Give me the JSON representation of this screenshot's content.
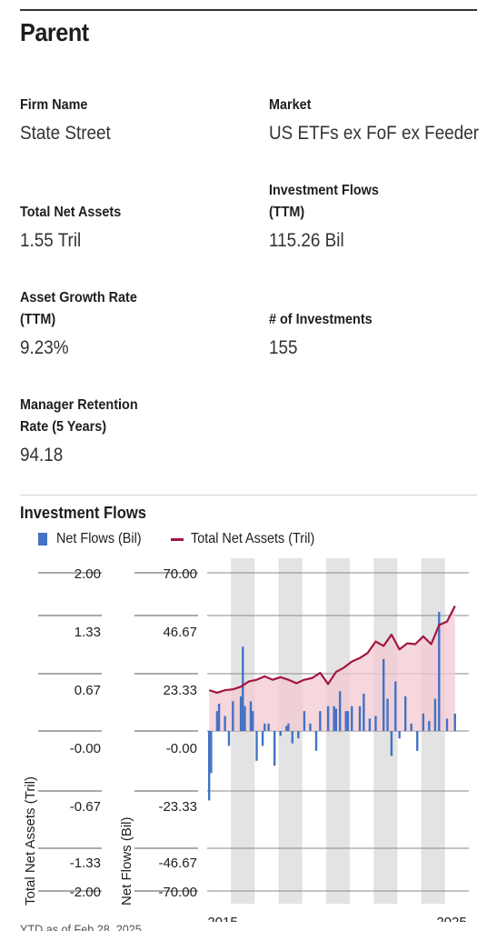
{
  "parent": {
    "title": "Parent",
    "firm_name": {
      "label": "Firm Name",
      "value": "State Street"
    },
    "market": {
      "label": "Market",
      "value": "US ETFs ex FoF ex Feeder"
    },
    "total_net_assets": {
      "label": "Total Net Assets",
      "value": "1.55 Tril"
    },
    "investment_flows": {
      "label_line1": "Investment Flows",
      "label_line2": "(TTM)",
      "value": "115.26 Bil"
    },
    "asset_growth_rate": {
      "label_line1": "Asset Growth Rate",
      "label_line2": "(TTM)",
      "value": "9.23%"
    },
    "num_investments": {
      "label": "# of Investments",
      "value": "155"
    },
    "manager_retention": {
      "label_line1": "Manager Retention",
      "label_line2": "Rate (5 Years)",
      "value": "94.18"
    }
  },
  "flows_section": {
    "title": "Investment Flows",
    "legend_bars": "Net Flows (Bil)",
    "legend_line": "Total Net Assets (Tril)",
    "footnote": "YTD as of Feb 28, 2025"
  },
  "colors": {
    "bars": "#4472c4",
    "line": "#a31540",
    "area": "#f2c9d2",
    "stripe": "#e3e3e3"
  },
  "chart_data": {
    "type": "bar",
    "ylabel_left": "Total Net Assets (Tril)",
    "ylabel_right": "Net Flows (Bil)",
    "left_axis_ticks": [
      "2.00",
      "1.33",
      "0.67",
      "-0.00",
      "-0.67",
      "-1.33",
      "-2.00"
    ],
    "right_axis_ticks": [
      "70.00",
      "46.67",
      "23.33",
      "-0.00",
      "-23.33",
      "-46.67",
      "-70.00"
    ],
    "ylim_left": [
      -2,
      2
    ],
    "ylim_right": [
      -70,
      70
    ],
    "x_tick_labels": [
      "2015",
      "2025"
    ],
    "grid": true,
    "series": [
      {
        "name": "Net Flows (Bil)",
        "x": [
          2014.583,
          2014.667,
          2014.917,
          2015.0,
          2015.25,
          2015.417,
          2015.583,
          2015.917,
          2016.0,
          2016.083,
          2016.333,
          2016.417,
          2016.583,
          2016.833,
          2016.917,
          2017.083,
          2017.333,
          2017.583,
          2017.833,
          2017.917,
          2018.083,
          2018.333,
          2018.583,
          2018.833,
          2019.083,
          2019.25,
          2019.583,
          2019.833,
          2019.917,
          2020.083,
          2020.333,
          2020.417,
          2020.583,
          2020.917,
          2021.083,
          2021.333,
          2021.583,
          2021.917,
          2022.083,
          2022.25,
          2022.417,
          2022.583,
          2022.833,
          2023.083,
          2023.333,
          2023.583,
          2023.833,
          2024.083,
          2024.25,
          2024.583,
          2024.917
        ],
        "values": [
          -28,
          -17,
          8,
          11,
          6,
          -6,
          12,
          14,
          34,
          10,
          12,
          8,
          -12,
          -6,
          3,
          3,
          -14,
          -2,
          2,
          3,
          -5,
          -3,
          8,
          3,
          -8,
          8,
          10,
          10,
          9,
          16,
          8,
          8,
          10,
          10,
          15,
          5,
          6,
          29,
          13,
          -10,
          20,
          -3,
          14,
          3,
          -8,
          7,
          4,
          13,
          48,
          5,
          7
        ]
      },
      {
        "name": "Total Net Assets (Tril)",
        "x": [
          2014.583,
          2014.917,
          2015.25,
          2015.583,
          2015.917,
          2016.25,
          2016.583,
          2016.917,
          2017.25,
          2017.583,
          2017.917,
          2018.25,
          2018.583,
          2018.917,
          2019.25,
          2019.583,
          2019.917,
          2020.25,
          2020.583,
          2020.917,
          2021.25,
          2021.583,
          2021.917,
          2022.25,
          2022.583,
          2022.917,
          2023.25,
          2023.583,
          2023.917,
          2024.25,
          2024.583,
          2024.917
        ],
        "values": [
          0.47,
          0.44,
          0.47,
          0.48,
          0.51,
          0.57,
          0.59,
          0.63,
          0.59,
          0.62,
          0.59,
          0.55,
          0.59,
          0.61,
          0.67,
          0.54,
          0.68,
          0.73,
          0.8,
          0.84,
          0.9,
          1.03,
          0.98,
          1.11,
          0.94,
          1.01,
          1.0,
          1.09,
          1.0,
          1.22,
          1.26,
          1.44
        ]
      }
    ]
  }
}
